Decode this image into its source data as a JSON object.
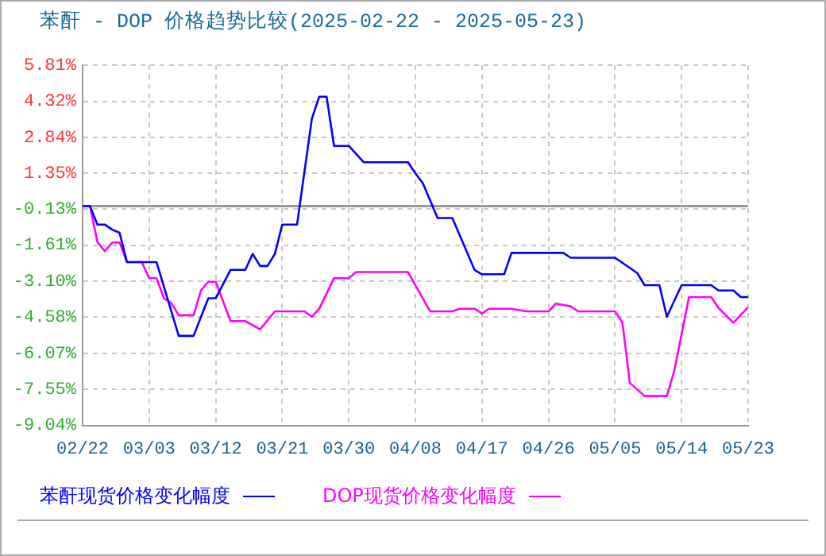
{
  "chart_data": {
    "type": "line",
    "title": "苯酐 - DOP 价格趋势比较(2025-02-22 - 2025-05-23)",
    "xlim": [
      "2025-02-22",
      "2025-05-23"
    ],
    "xticks": [
      {
        "value": "2025-02-22",
        "label": "02/22"
      },
      {
        "value": "2025-03-03",
        "label": "03/03"
      },
      {
        "value": "2025-03-12",
        "label": "03/12"
      },
      {
        "value": "2025-03-21",
        "label": "03/21"
      },
      {
        "value": "2025-03-30",
        "label": "03/30"
      },
      {
        "value": "2025-04-08",
        "label": "04/08"
      },
      {
        "value": "2025-04-17",
        "label": "04/17"
      },
      {
        "value": "2025-04-26",
        "label": "04/26"
      },
      {
        "value": "2025-05-05",
        "label": "05/05"
      },
      {
        "value": "2025-05-14",
        "label": "05/14"
      },
      {
        "value": "2025-05-23",
        "label": "05/23"
      }
    ],
    "ylim": [
      -9.04,
      5.81
    ],
    "yticks": [
      {
        "value": 5.81,
        "label": "5.81%"
      },
      {
        "value": 4.32,
        "label": "4.32%"
      },
      {
        "value": 2.84,
        "label": "2.84%"
      },
      {
        "value": 1.35,
        "label": "1.35%"
      },
      {
        "value": -0.13,
        "label": "-0.13%"
      },
      {
        "value": -1.61,
        "label": "-1.61%"
      },
      {
        "value": -3.1,
        "label": "-3.10%"
      },
      {
        "value": -4.58,
        "label": "-4.58%"
      },
      {
        "value": -6.07,
        "label": "-6.07%"
      },
      {
        "value": -7.55,
        "label": "-7.55%"
      },
      {
        "value": -9.04,
        "label": "-9.04%"
      }
    ],
    "grid": true,
    "legend": "bottom",
    "marker": "none",
    "line_style": "solid",
    "ref_lines": [
      {
        "axis": "y",
        "value": 0,
        "color": "#999999"
      }
    ],
    "series": [
      {
        "name": "苯酐现货价格变化幅度",
        "color": "#0000ff",
        "x": [
          "2025-02-22",
          "2025-02-23",
          "2025-02-24",
          "2025-02-25",
          "2025-02-26",
          "2025-02-27",
          "2025-02-28",
          "2025-03-04",
          "2025-03-07",
          "2025-03-09",
          "2025-03-11",
          "2025-03-12",
          "2025-03-14",
          "2025-03-16",
          "2025-03-17",
          "2025-03-18",
          "2025-03-19",
          "2025-03-20",
          "2025-03-21",
          "2025-03-23",
          "2025-03-25",
          "2025-03-26",
          "2025-03-27",
          "2025-03-28",
          "2025-03-30",
          "2025-04-01",
          "2025-04-07",
          "2025-04-08",
          "2025-04-09",
          "2025-04-11",
          "2025-04-13",
          "2025-04-16",
          "2025-04-17",
          "2025-04-20",
          "2025-04-21",
          "2025-04-28",
          "2025-04-29",
          "2025-05-05",
          "2025-05-08",
          "2025-05-09",
          "2025-05-11",
          "2025-05-12",
          "2025-05-14",
          "2025-05-18",
          "2025-05-19",
          "2025-05-21",
          "2025-05-22",
          "2025-05-23"
        ],
        "values": [
          0,
          0,
          -0.76,
          -0.76,
          -0.97,
          -1.1,
          -2.31,
          -2.31,
          -5.35,
          -5.35,
          -3.8,
          -3.8,
          -2.63,
          -2.63,
          -1.97,
          -2.47,
          -2.47,
          -1.97,
          -0.76,
          -0.76,
          3.6,
          4.51,
          4.51,
          2.48,
          2.48,
          1.81,
          1.81,
          1.35,
          0.95,
          -0.49,
          -0.49,
          -2.63,
          -2.81,
          -2.81,
          -1.93,
          -1.93,
          -2.13,
          -2.13,
          -2.76,
          -3.26,
          -3.26,
          -4.56,
          -3.26,
          -3.26,
          -3.48,
          -3.48,
          -3.75,
          -3.75
        ]
      },
      {
        "name": "DOP现货价格变化幅度",
        "color": "#ff00ff",
        "x": [
          "2025-02-22",
          "2025-02-23",
          "2025-02-24",
          "2025-02-25",
          "2025-02-26",
          "2025-02-27",
          "2025-02-28",
          "2025-03-02",
          "2025-03-03",
          "2025-03-04",
          "2025-03-05",
          "2025-03-06",
          "2025-03-07",
          "2025-03-09",
          "2025-03-10",
          "2025-03-11",
          "2025-03-12",
          "2025-03-14",
          "2025-03-16",
          "2025-03-18",
          "2025-03-20",
          "2025-03-24",
          "2025-03-25",
          "2025-03-26",
          "2025-03-28",
          "2025-03-30",
          "2025-03-31",
          "2025-04-07",
          "2025-04-10",
          "2025-04-13",
          "2025-04-14",
          "2025-04-16",
          "2025-04-17",
          "2025-04-18",
          "2025-04-21",
          "2025-04-23",
          "2025-04-26",
          "2025-04-27",
          "2025-04-29",
          "2025-04-30",
          "2025-05-05",
          "2025-05-06",
          "2025-05-07",
          "2025-05-09",
          "2025-05-12",
          "2025-05-13",
          "2025-05-15",
          "2025-05-18",
          "2025-05-19",
          "2025-05-21",
          "2025-05-23"
        ],
        "values": [
          0,
          0,
          -1.48,
          -1.86,
          -1.5,
          -1.5,
          -2.31,
          -2.31,
          -2.97,
          -2.97,
          -3.8,
          -4.0,
          -4.5,
          -4.5,
          -3.48,
          -3.12,
          -3.12,
          -4.74,
          -4.74,
          -5.08,
          -4.34,
          -4.34,
          -4.56,
          -4.23,
          -2.97,
          -2.97,
          -2.72,
          -2.72,
          -4.34,
          -4.34,
          -4.23,
          -4.23,
          -4.43,
          -4.23,
          -4.23,
          -4.34,
          -4.34,
          -4.02,
          -4.13,
          -4.34,
          -4.34,
          -4.8,
          -7.29,
          -7.83,
          -7.83,
          -6.8,
          -3.75,
          -3.75,
          -4.2,
          -4.81,
          -4.16
        ]
      }
    ]
  }
}
